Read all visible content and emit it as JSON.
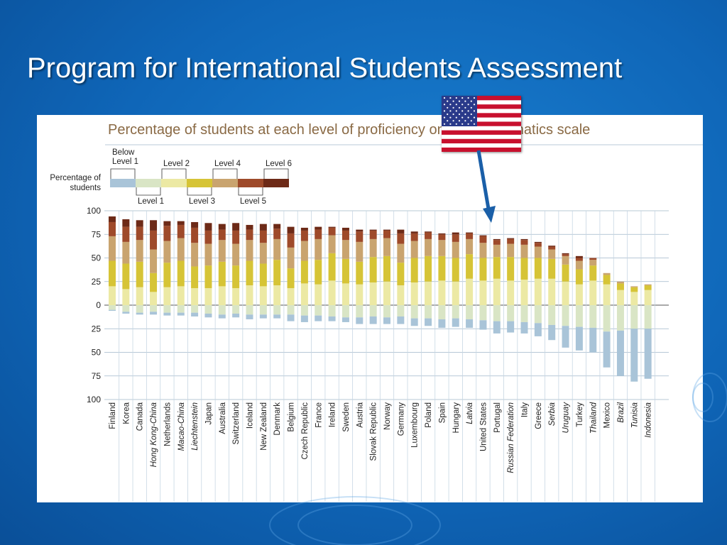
{
  "slide": {
    "title": "Program for International Students Assessment"
  },
  "colors": {
    "below1": "#a9c4d8",
    "level1": "#d9e5c5",
    "level2": "#ece9a4",
    "level3": "#d6c436",
    "level4": "#c9a46f",
    "level5": "#9e4a2a",
    "level6": "#6d2a17",
    "arrow": "#1a5fa8",
    "chart_title": "#8a6a45"
  },
  "chart_data": {
    "type": "bar",
    "title": "Percentage of students at each level of proficiency on the mathematics scale",
    "ylabel": "Percentage of students",
    "ylim": [
      -100,
      100
    ],
    "yticks": [
      "100",
      "75",
      "50",
      "25",
      "0",
      "25",
      "50",
      "75",
      "100"
    ],
    "legend": {
      "placement": "top-left",
      "label": "Percentage of students",
      "items": [
        {
          "key": "below1",
          "label": "Below Level 1"
        },
        {
          "key": "level1",
          "label": "Level 1"
        },
        {
          "key": "level2",
          "label": "Level 2"
        },
        {
          "key": "level3",
          "label": "Level 3"
        },
        {
          "key": "level4",
          "label": "Level 4"
        },
        {
          "key": "level5",
          "label": "Level 5"
        },
        {
          "key": "level6",
          "label": "Level 6"
        }
      ]
    },
    "stack_above": [
      "level2",
      "level3",
      "level4",
      "level5",
      "level6"
    ],
    "stack_below": [
      "level1",
      "below1"
    ],
    "highlight": "United States",
    "categories": [
      {
        "name": "Finland",
        "italic": false,
        "below1": 1,
        "level1": 5,
        "level2": 20,
        "level3": 27,
        "level4": 26,
        "level5": 15,
        "level6": 6
      },
      {
        "name": "Korea",
        "italic": false,
        "below1": 2,
        "level1": 7,
        "level2": 17,
        "level3": 27,
        "level4": 23,
        "level5": 16,
        "level6": 8
      },
      {
        "name": "Canada",
        "italic": false,
        "below1": 2,
        "level1": 8,
        "level2": 19,
        "level3": 27,
        "level4": 23,
        "level5": 14,
        "level6": 7
      },
      {
        "name": "Hong Kong-China",
        "italic": true,
        "below1": 3,
        "level1": 7,
        "level2": 14,
        "level3": 20,
        "level4": 25,
        "level5": 20,
        "level6": 11
      },
      {
        "name": "Netherlands",
        "italic": false,
        "below1": 3,
        "level1": 8,
        "level2": 19,
        "level3": 26,
        "level4": 23,
        "level5": 16,
        "level6": 5
      },
      {
        "name": "Macao-China",
        "italic": true,
        "below1": 3,
        "level1": 8,
        "level2": 20,
        "level3": 27,
        "level4": 24,
        "level5": 14,
        "level6": 4
      },
      {
        "name": "Liechtenstein",
        "italic": true,
        "below1": 4,
        "level1": 8,
        "level2": 18,
        "level3": 23,
        "level4": 25,
        "level5": 16,
        "level6": 6
      },
      {
        "name": "Japan",
        "italic": false,
        "below1": 4,
        "level1": 9,
        "level2": 18,
        "level3": 24,
        "level4": 23,
        "level5": 14,
        "level6": 8
      },
      {
        "name": "Australia",
        "italic": false,
        "below1": 4,
        "level1": 10,
        "level2": 20,
        "level3": 26,
        "level4": 23,
        "level5": 11,
        "level6": 6
      },
      {
        "name": "Switzerland",
        "italic": false,
        "below1": 4,
        "level1": 9,
        "level2": 18,
        "level3": 24,
        "level4": 23,
        "level5": 14,
        "level6": 8
      },
      {
        "name": "Iceland",
        "italic": false,
        "below1": 5,
        "level1": 10,
        "level2": 21,
        "level3": 26,
        "level4": 22,
        "level5": 11,
        "level6": 5
      },
      {
        "name": "New Zealand",
        "italic": false,
        "below1": 4,
        "level1": 10,
        "level2": 20,
        "level3": 24,
        "level4": 22,
        "level5": 13,
        "level6": 7
      },
      {
        "name": "Denmark",
        "italic": false,
        "below1": 4,
        "level1": 10,
        "level2": 21,
        "level3": 27,
        "level4": 22,
        "level5": 11,
        "level6": 5
      },
      {
        "name": "Belgium",
        "italic": false,
        "below1": 7,
        "level1": 10,
        "level2": 18,
        "level3": 21,
        "level4": 22,
        "level5": 15,
        "level6": 7
      },
      {
        "name": "Czech Republic",
        "italic": false,
        "below1": 7,
        "level1": 11,
        "level2": 23,
        "level3": 24,
        "level4": 21,
        "level5": 11,
        "level6": 3
      },
      {
        "name": "France",
        "italic": false,
        "below1": 6,
        "level1": 11,
        "level2": 22,
        "level3": 26,
        "level4": 22,
        "level5": 10,
        "level6": 3
      },
      {
        "name": "Ireland",
        "italic": false,
        "below1": 5,
        "level1": 12,
        "level2": 26,
        "level3": 29,
        "level4": 19,
        "level5": 8,
        "level6": 1
      },
      {
        "name": "Sweden",
        "italic": false,
        "below1": 5,
        "level1": 13,
        "level2": 23,
        "level3": 26,
        "level4": 20,
        "level5": 10,
        "level6": 3
      },
      {
        "name": "Austria",
        "italic": false,
        "below1": 7,
        "level1": 13,
        "level2": 22,
        "level3": 24,
        "level4": 21,
        "level5": 11,
        "level6": 2
      },
      {
        "name": "Slovak Republic",
        "italic": false,
        "below1": 8,
        "level1": 12,
        "level2": 24,
        "level3": 27,
        "level4": 19,
        "level5": 9,
        "level6": 1
      },
      {
        "name": "Norway",
        "italic": false,
        "below1": 7,
        "level1": 13,
        "level2": 25,
        "level3": 27,
        "level4": 19,
        "level5": 8,
        "level6": 1
      },
      {
        "name": "Germany",
        "italic": false,
        "below1": 8,
        "level1": 12,
        "level2": 21,
        "level3": 24,
        "level4": 20,
        "level5": 11,
        "level6": 4
      },
      {
        "name": "Luxembourg",
        "italic": false,
        "below1": 8,
        "level1": 14,
        "level2": 24,
        "level3": 26,
        "level4": 18,
        "level5": 8,
        "level6": 2
      },
      {
        "name": "Poland",
        "italic": false,
        "below1": 8,
        "level1": 14,
        "level2": 25,
        "level3": 27,
        "level4": 18,
        "level5": 7,
        "level6": 1
      },
      {
        "name": "Spain",
        "italic": false,
        "below1": 9,
        "level1": 15,
        "level2": 26,
        "level3": 26,
        "level4": 17,
        "level5": 6,
        "level6": 1
      },
      {
        "name": "Hungary",
        "italic": false,
        "below1": 9,
        "level1": 14,
        "level2": 25,
        "level3": 25,
        "level4": 17,
        "level5": 8,
        "level6": 2
      },
      {
        "name": "Latvia",
        "italic": true,
        "below1": 9,
        "level1": 15,
        "level2": 28,
        "level3": 26,
        "level4": 16,
        "level5": 6,
        "level6": 1
      },
      {
        "name": "United States",
        "italic": false,
        "below1": 10,
        "level1": 16,
        "level2": 26,
        "level3": 24,
        "level4": 16,
        "level5": 7,
        "level6": 1
      },
      {
        "name": "Portugal",
        "italic": false,
        "below1": 13,
        "level1": 17,
        "level2": 28,
        "level3": 23,
        "level4": 13,
        "level5": 5,
        "level6": 1
      },
      {
        "name": "Russian Federation",
        "italic": true,
        "below1": 12,
        "level1": 17,
        "level2": 26,
        "level3": 25,
        "level4": 14,
        "level5": 5,
        "level6": 1
      },
      {
        "name": "Italy",
        "italic": false,
        "below1": 12,
        "level1": 18,
        "level2": 27,
        "level3": 23,
        "level4": 14,
        "level5": 5,
        "level6": 1
      },
      {
        "name": "Greece",
        "italic": false,
        "below1": 14,
        "level1": 19,
        "level2": 28,
        "level3": 22,
        "level4": 12,
        "level5": 4,
        "level6": 1
      },
      {
        "name": "Serbia",
        "italic": true,
        "below1": 16,
        "level1": 21,
        "level2": 28,
        "level3": 21,
        "level4": 10,
        "level5": 3,
        "level6": 1
      },
      {
        "name": "Uruguay",
        "italic": true,
        "below1": 23,
        "level1": 22,
        "level2": 25,
        "level3": 18,
        "level4": 9,
        "level5": 2,
        "level6": 1
      },
      {
        "name": "Turkey",
        "italic": false,
        "below1": 25,
        "level1": 23,
        "level2": 22,
        "level3": 16,
        "level4": 9,
        "level5": 3,
        "level6": 2
      },
      {
        "name": "Thailand",
        "italic": true,
        "below1": 26,
        "level1": 24,
        "level2": 26,
        "level3": 16,
        "level4": 6,
        "level5": 2,
        "level6": 0
      },
      {
        "name": "Mexico",
        "italic": false,
        "below1": 38,
        "level1": 28,
        "level2": 22,
        "level3": 10,
        "level4": 2,
        "level5": 0,
        "level6": 0
      },
      {
        "name": "Brazil",
        "italic": true,
        "below1": 48,
        "level1": 27,
        "level2": 16,
        "level3": 7,
        "level4": 2,
        "level5": 0,
        "level6": 0
      },
      {
        "name": "Tunisia",
        "italic": true,
        "below1": 56,
        "level1": 25,
        "level2": 14,
        "level3": 5,
        "level4": 1,
        "level5": 0,
        "level6": 0
      },
      {
        "name": "Indonesia",
        "italic": true,
        "below1": 53,
        "level1": 25,
        "level2": 16,
        "level3": 5,
        "level4": 1,
        "level5": 0,
        "level6": 0
      }
    ]
  }
}
